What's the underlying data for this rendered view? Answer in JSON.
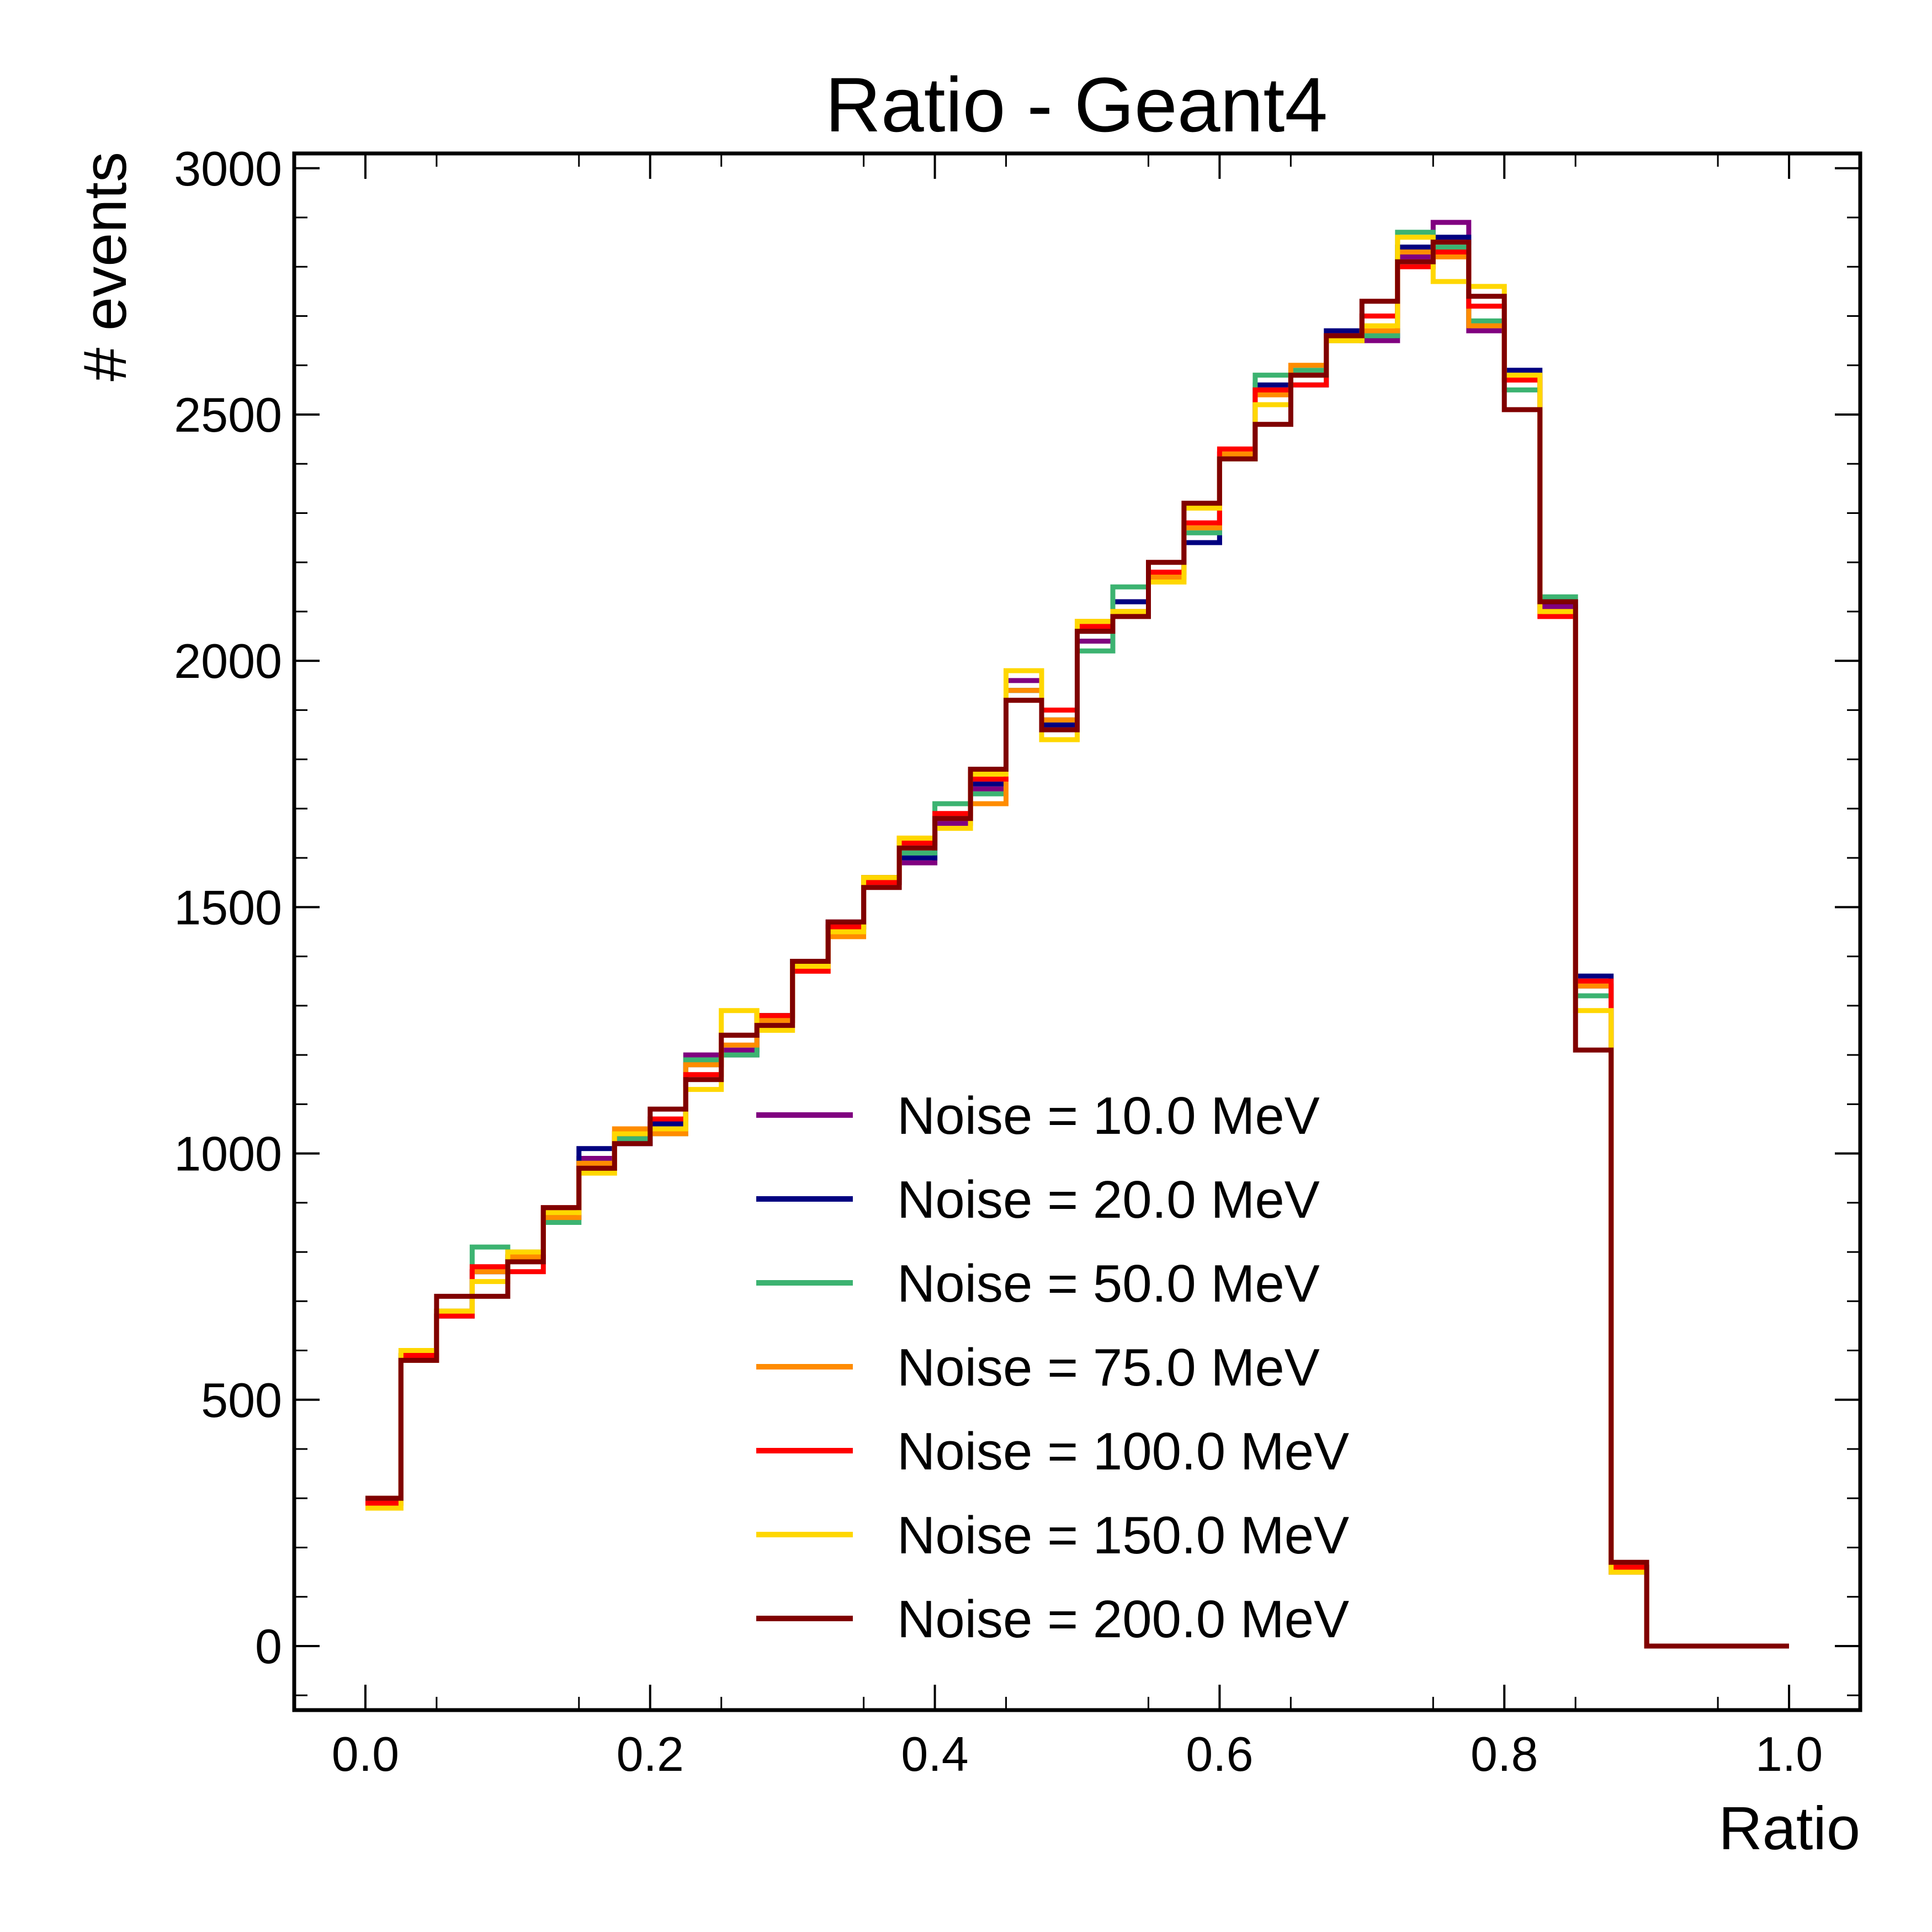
{
  "chart_data": {
    "type": "line",
    "style": "step-histogram",
    "title": "Ratio - Geant4",
    "xlabel": "Ratio",
    "ylabel": "# events",
    "xlim": [
      -0.05,
      1.05
    ],
    "ylim": [
      -130,
      3030
    ],
    "xticks": [
      "0.0",
      "0.2",
      "0.4",
      "0.6",
      "0.8",
      "1.0"
    ],
    "yticks": [
      "0",
      "500",
      "1000",
      "1500",
      "2000",
      "2500",
      "3000"
    ],
    "grid": false,
    "legend_position": "bottom-center",
    "bin_edges": [
      0.0,
      0.025,
      0.05,
      0.075,
      0.1,
      0.125,
      0.15,
      0.175,
      0.2,
      0.225,
      0.25,
      0.275,
      0.3,
      0.325,
      0.35,
      0.375,
      0.4,
      0.425,
      0.45,
      0.475,
      0.5,
      0.525,
      0.55,
      0.575,
      0.6,
      0.625,
      0.65,
      0.675,
      0.7,
      0.725,
      0.75,
      0.775,
      0.8,
      0.825,
      0.85,
      0.875,
      0.9,
      0.925,
      0.95,
      0.975,
      1.0
    ],
    "series": [
      {
        "name": "Noise = 10.0 MeV",
        "color": "#800080",
        "values": [
          290,
          580,
          670,
          760,
          790,
          880,
          990,
          1020,
          1050,
          1200,
          1210,
          1270,
          1380,
          1470,
          1550,
          1590,
          1670,
          1740,
          1960,
          1880,
          2040,
          2120,
          2180,
          2240,
          2420,
          2550,
          2580,
          2660,
          2650,
          2820,
          2890,
          2670,
          2580,
          2110,
          1340,
          150,
          0,
          0,
          0,
          0
        ]
      },
      {
        "name": "Noise = 20.0 MeV",
        "color": "#000080",
        "values": [
          300,
          590,
          670,
          760,
          790,
          870,
          1010,
          1020,
          1060,
          1180,
          1200,
          1280,
          1390,
          1460,
          1560,
          1600,
          1680,
          1750,
          1940,
          1870,
          2060,
          2120,
          2180,
          2240,
          2410,
          2560,
          2560,
          2670,
          2660,
          2840,
          2860,
          2680,
          2590,
          2120,
          1360,
          160,
          0,
          0,
          0,
          0
        ]
      },
      {
        "name": "Noise = 50.0 MeV",
        "color": "#3cb371",
        "values": [
          290,
          580,
          680,
          810,
          800,
          860,
          980,
          1030,
          1040,
          1190,
          1200,
          1280,
          1390,
          1450,
          1550,
          1610,
          1710,
          1730,
          1940,
          1880,
          2020,
          2150,
          2180,
          2260,
          2410,
          2580,
          2590,
          2650,
          2660,
          2870,
          2840,
          2690,
          2550,
          2130,
          1320,
          160,
          0,
          0,
          0,
          0
        ]
      },
      {
        "name": "Noise = 75.0 MeV",
        "color": "#ff8c00",
        "values": [
          300,
          580,
          680,
          760,
          790,
          870,
          980,
          1050,
          1040,
          1180,
          1220,
          1270,
          1370,
          1440,
          1560,
          1640,
          1680,
          1710,
          1940,
          1880,
          2080,
          2100,
          2170,
          2270,
          2420,
          2540,
          2600,
          2650,
          2670,
          2830,
          2820,
          2680,
          2570,
          2100,
          1340,
          160,
          0,
          0,
          0,
          0
        ]
      },
      {
        "name": "Noise = 100.0 MeV",
        "color": "#ff0000",
        "values": [
          290,
          590,
          670,
          770,
          760,
          890,
          970,
          1040,
          1070,
          1160,
          1240,
          1280,
          1370,
          1460,
          1550,
          1630,
          1690,
          1760,
          1920,
          1900,
          2070,
          2100,
          2180,
          2280,
          2430,
          2550,
          2560,
          2660,
          2700,
          2800,
          2830,
          2720,
          2570,
          2090,
          1350,
          160,
          0,
          0,
          0,
          0
        ]
      },
      {
        "name": "Noise = 150.0 MeV",
        "color": "#ffd700",
        "values": [
          280,
          600,
          680,
          740,
          800,
          880,
          960,
          1040,
          1050,
          1130,
          1290,
          1250,
          1380,
          1450,
          1560,
          1640,
          1660,
          1770,
          1980,
          1840,
          2080,
          2100,
          2160,
          2310,
          2410,
          2520,
          2580,
          2650,
          2680,
          2860,
          2770,
          2760,
          2580,
          2100,
          1290,
          150,
          0,
          0,
          0,
          0
        ]
      },
      {
        "name": "Noise = 200.0 MeV",
        "color": "#800000",
        "values": [
          300,
          580,
          710,
          710,
          780,
          890,
          970,
          1020,
          1090,
          1150,
          1240,
          1260,
          1390,
          1470,
          1540,
          1620,
          1680,
          1780,
          1920,
          1860,
          2060,
          2090,
          2200,
          2320,
          2410,
          2480,
          2580,
          2660,
          2730,
          2810,
          2850,
          2740,
          2510,
          2120,
          1210,
          170,
          0,
          0,
          0,
          0
        ]
      }
    ]
  }
}
